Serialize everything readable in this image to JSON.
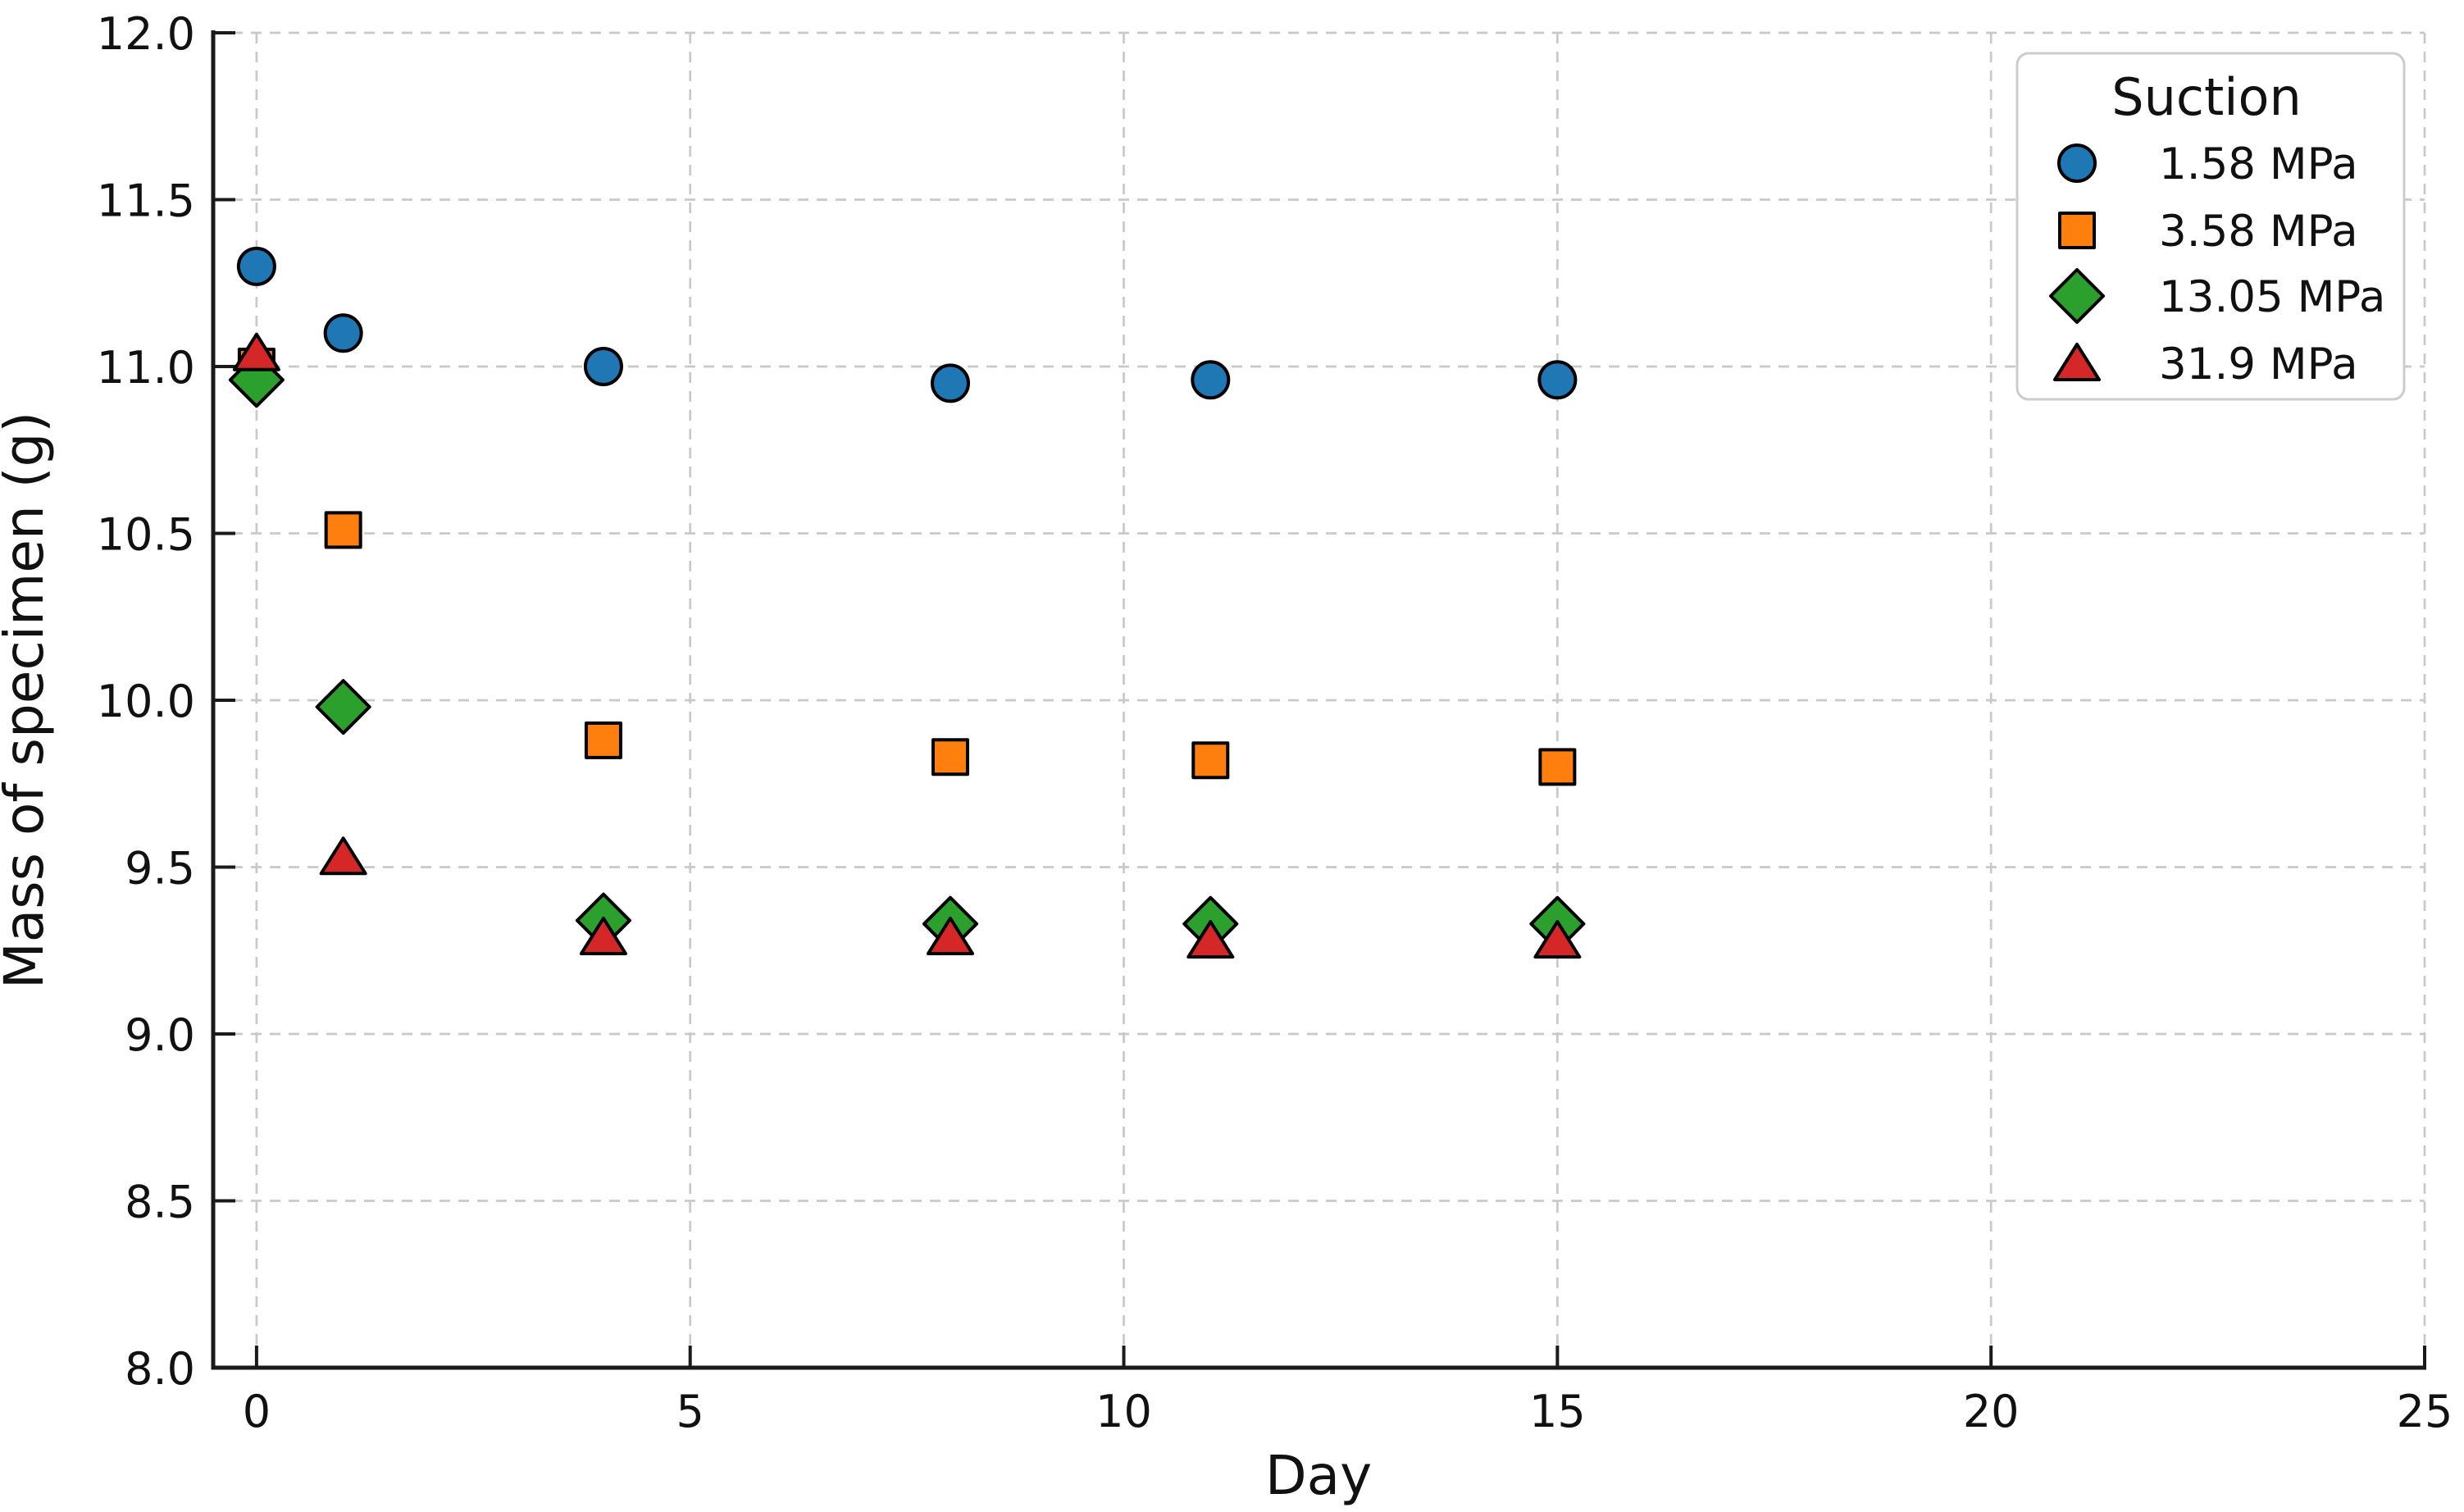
{
  "chart_data": {
    "type": "scatter",
    "title": "",
    "xlabel": "Day",
    "ylabel": "Mass of specimen (g)",
    "xlim": [
      -0.5,
      25
    ],
    "ylim": [
      8.0,
      12.0
    ],
    "xticks": [
      0,
      5,
      10,
      15,
      20,
      25
    ],
    "yticks": [
      8.0,
      8.5,
      9.0,
      9.5,
      10.0,
      10.5,
      11.0,
      11.5,
      12.0
    ],
    "grid": true,
    "grid_style": "dashed",
    "legend": {
      "title": "Suction",
      "position": "upper-right"
    },
    "x": [
      0,
      1,
      4,
      8,
      11,
      15
    ],
    "series": [
      {
        "name": "1.58 MPa",
        "marker": "circle",
        "color": "#1f77b4",
        "values": [
          11.3,
          11.1,
          11.0,
          10.95,
          10.96,
          10.96
        ]
      },
      {
        "name": "3.58 MPa",
        "marker": "square",
        "color": "#ff7f0e",
        "values": [
          11.0,
          10.51,
          9.88,
          9.83,
          9.82,
          9.8
        ]
      },
      {
        "name": "13.05 MPa",
        "marker": "diamond",
        "color": "#2ca02c",
        "values": [
          10.96,
          9.98,
          9.34,
          9.33,
          9.33,
          9.33
        ]
      },
      {
        "name": "31.9 MPa",
        "marker": "triangle",
        "color": "#d62728",
        "values": [
          11.04,
          9.53,
          9.29,
          9.29,
          9.28,
          9.28
        ]
      }
    ],
    "marker_edge_color": "#000000",
    "colors": {
      "grid": "#c9c9c9",
      "spine": "#1a1a1a",
      "tick": "#1a1a1a",
      "text": "#111111",
      "legend_border": "#cccccc",
      "background": "#ffffff"
    }
  }
}
